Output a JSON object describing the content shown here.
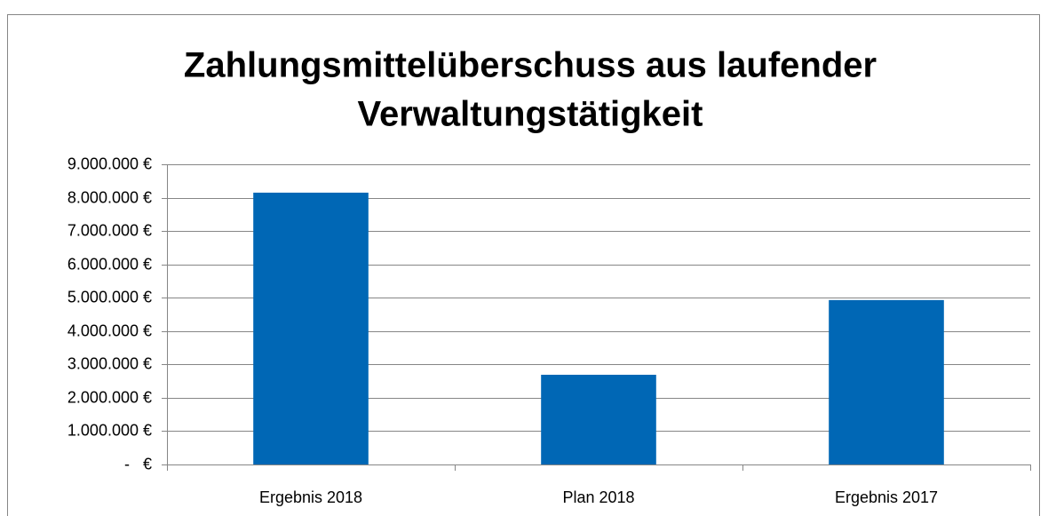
{
  "chart_data": {
    "type": "bar",
    "title": [
      "Zahlungsmittelüberschuss aus laufender",
      "Verwaltungstätigkeit"
    ],
    "categories": [
      "Ergebnis 2018",
      "Plan 2018",
      "Ergebnis 2017"
    ],
    "values": [
      8150000,
      2690000,
      4930000
    ],
    "color": "#0067b5",
    "ylim": [
      0,
      9000000
    ],
    "yticks": [
      {
        "value": 0,
        "label": "-   €"
      },
      {
        "value": 1000000,
        "label": "1.000.000 €"
      },
      {
        "value": 2000000,
        "label": "2.000.000 €"
      },
      {
        "value": 3000000,
        "label": "3.000.000 €"
      },
      {
        "value": 4000000,
        "label": "4.000.000 €"
      },
      {
        "value": 5000000,
        "label": "5.000.000 €"
      },
      {
        "value": 6000000,
        "label": "6.000.000 €"
      },
      {
        "value": 7000000,
        "label": "7.000.000 €"
      },
      {
        "value": 8000000,
        "label": "8.000.000 €"
      },
      {
        "value": 9000000,
        "label": "9.000.000 €"
      }
    ],
    "grid": true
  }
}
